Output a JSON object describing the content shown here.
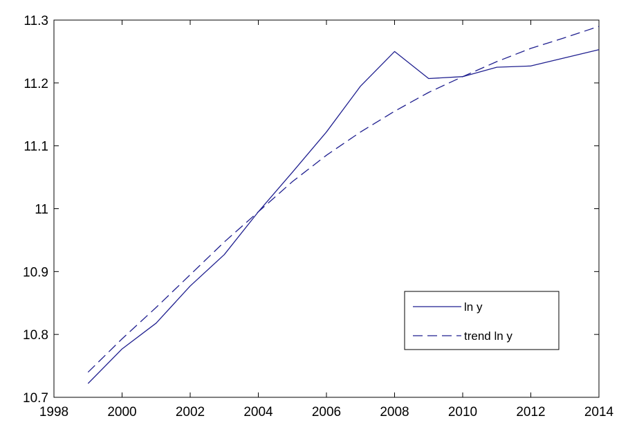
{
  "chart_data": {
    "type": "line",
    "title": "",
    "xlabel": "",
    "ylabel": "",
    "xlim": [
      1998,
      2014
    ],
    "ylim": [
      10.7,
      11.3
    ],
    "xticks": [
      1998,
      2000,
      2002,
      2004,
      2006,
      2008,
      2010,
      2012,
      2014
    ],
    "yticks": [
      10.7,
      10.8,
      10.9,
      11.0,
      11.1,
      11.2,
      11.3
    ],
    "xtick_labels": [
      "1998",
      "2000",
      "2002",
      "2004",
      "2006",
      "2008",
      "2010",
      "2012",
      "2014"
    ],
    "ytick_labels": [
      "10.7",
      "10.8",
      "10.9",
      "11",
      "11.1",
      "11.2",
      "11.3"
    ],
    "grid": false,
    "legend_position": "bottom-right",
    "series": [
      {
        "name": "ln y",
        "style": "solid",
        "color": "#1f1f8f",
        "x": [
          1999,
          2000,
          2001,
          2002,
          2003,
          2004,
          2005,
          2006,
          2007,
          2008,
          2009,
          2010,
          2011,
          2012,
          2013,
          2014
        ],
        "y": [
          10.722,
          10.777,
          10.818,
          10.877,
          10.927,
          10.995,
          11.058,
          11.122,
          11.195,
          11.25,
          11.207,
          11.21,
          11.225,
          11.227,
          11.24,
          11.253
        ]
      },
      {
        "name": "trend ln y",
        "style": "dashed",
        "color": "#1f1f8f",
        "x": [
          1999,
          2000,
          2001,
          2002,
          2003,
          2004,
          2005,
          2006,
          2007,
          2008,
          2009,
          2010,
          2011,
          2012,
          2013,
          2014
        ],
        "y": [
          10.74,
          10.793,
          10.843,
          10.895,
          10.947,
          10.995,
          11.043,
          11.085,
          11.122,
          11.155,
          11.185,
          11.21,
          11.234,
          11.255,
          11.272,
          11.29
        ]
      }
    ]
  }
}
